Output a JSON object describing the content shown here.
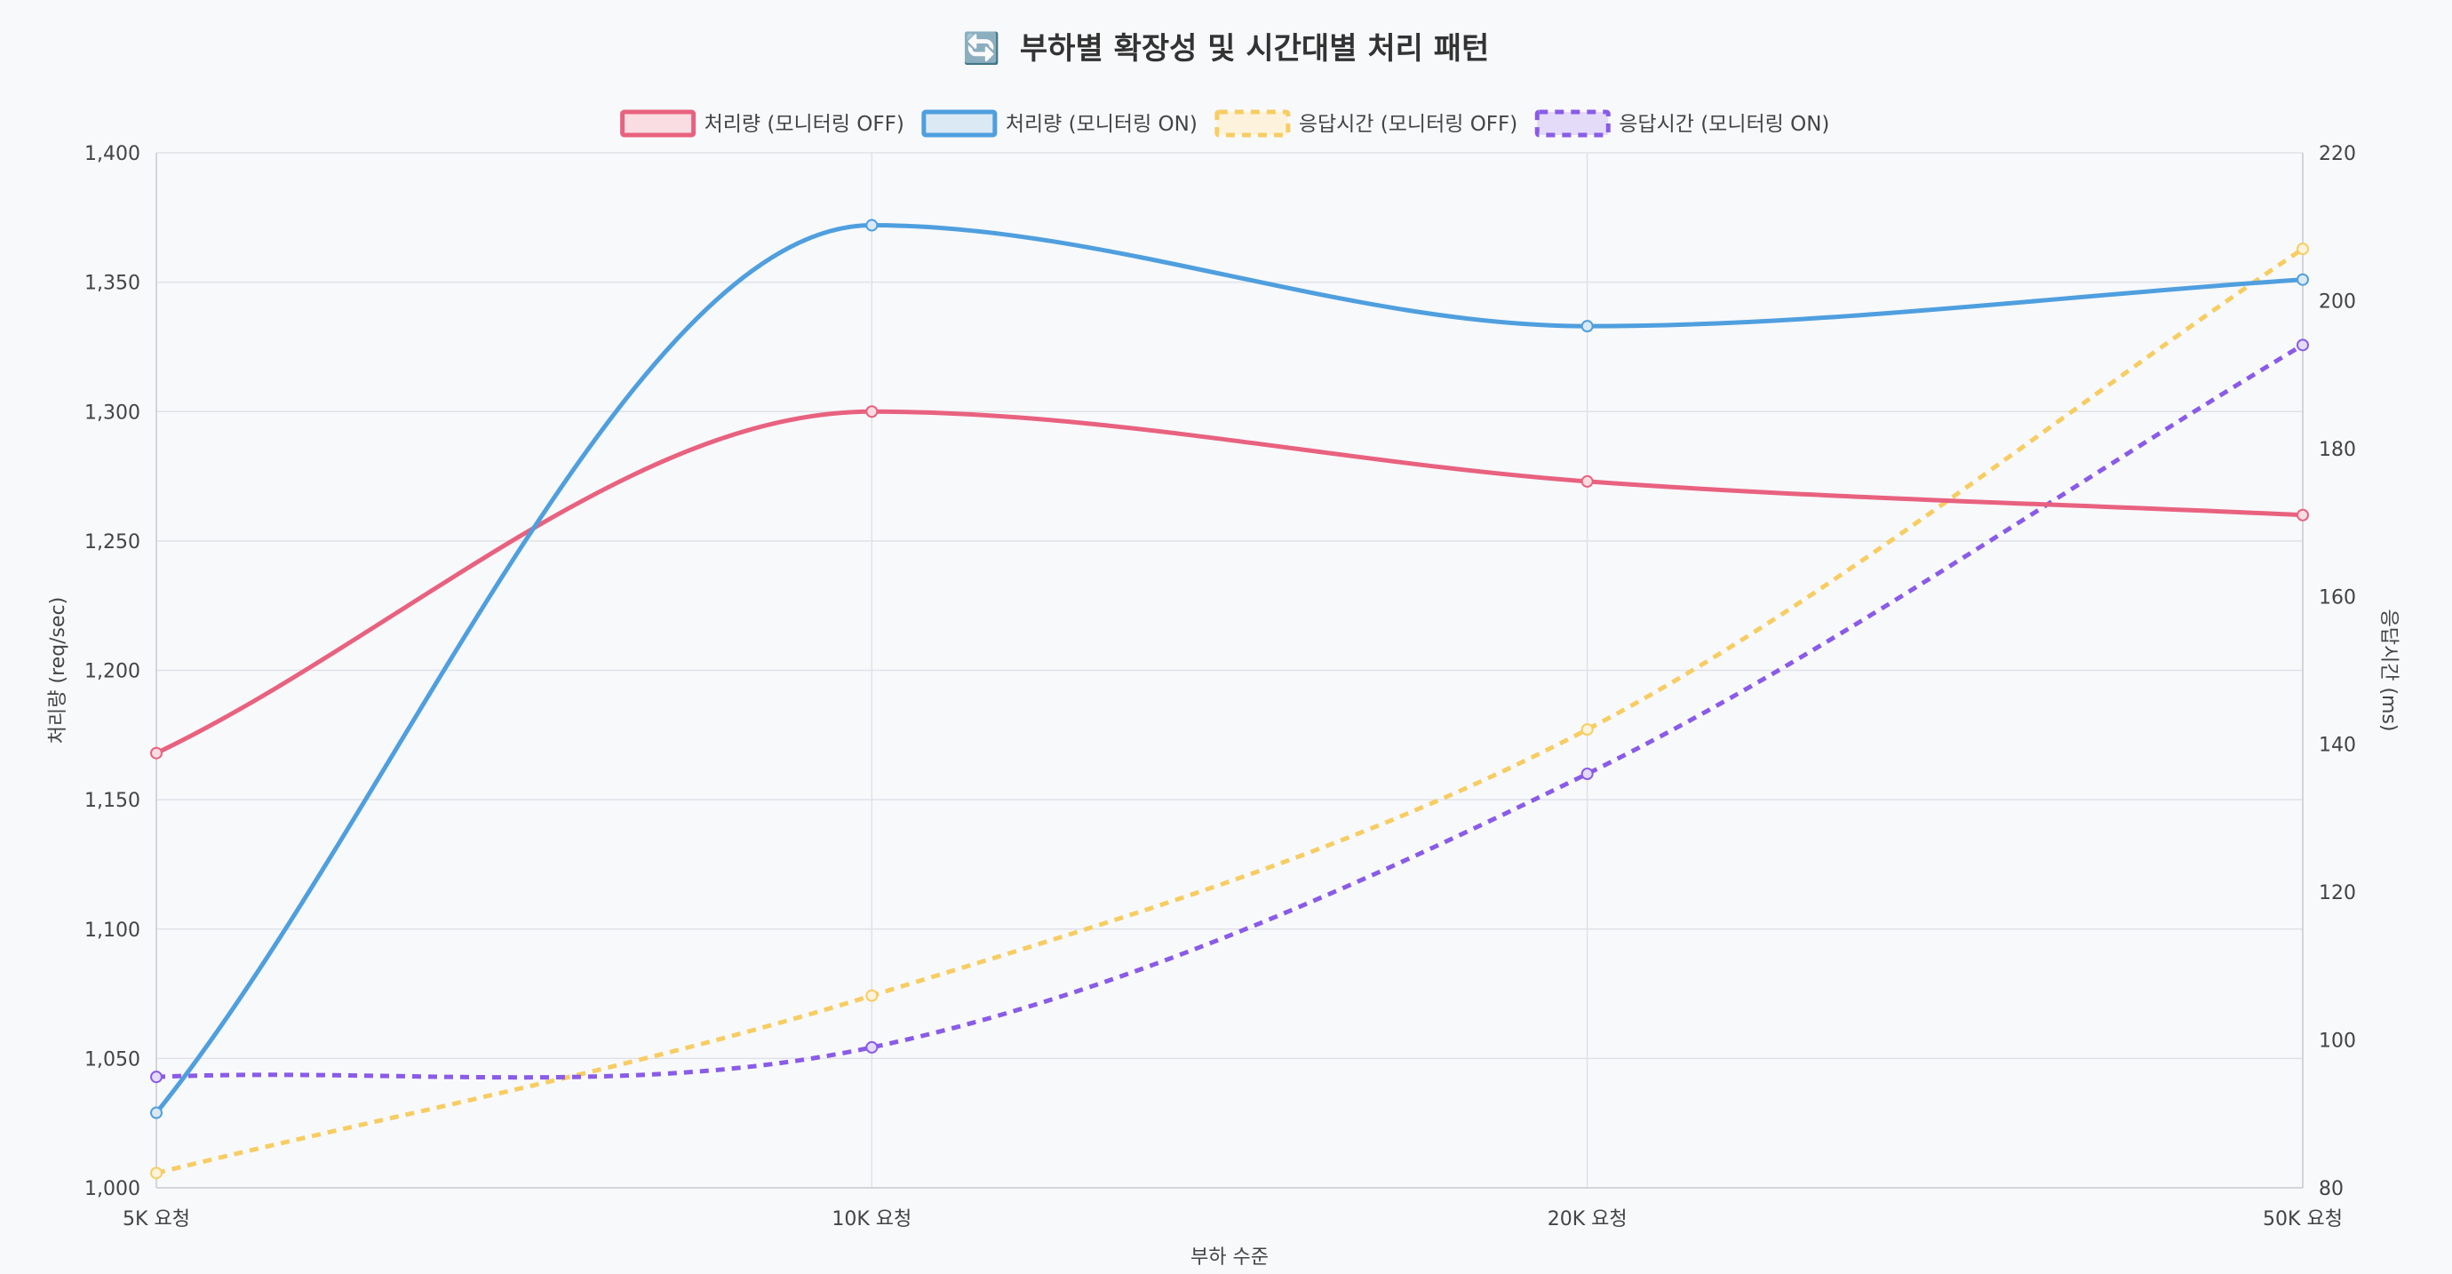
{
  "title_icon": "🔄",
  "title_text": "부하별 확장성 및 시간대별 처리 패턴",
  "chart_data": {
    "type": "line",
    "title": "🔄 부하별 확장성 및 시간대별 처리 패턴",
    "categories": [
      "5K 요청",
      "10K 요청",
      "20K 요청",
      "50K 요청"
    ],
    "xlabel": "부하 수준",
    "ylabel": "처리량 (req/sec)",
    "y2label": "응답시간 (ms)",
    "ylim": [
      1000,
      1400
    ],
    "y2lim": [
      80,
      220
    ],
    "yticks": [
      1000,
      1050,
      1100,
      1150,
      1200,
      1250,
      1300,
      1350,
      1400
    ],
    "y2ticks": [
      80,
      100,
      120,
      140,
      160,
      180,
      200,
      220
    ],
    "grid": true,
    "legend_position": "top",
    "series": [
      {
        "name": "처리량 (모니터링 OFF)",
        "axis": "left",
        "values": [
          1168,
          1300,
          1273,
          1260
        ],
        "color": "#e8627f",
        "fill": "#f9dde3",
        "dashed": false
      },
      {
        "name": "처리량 (모니터링 ON)",
        "axis": "left",
        "values": [
          1029,
          1372,
          1333,
          1351
        ],
        "color": "#4f9fdf",
        "fill": "#dbe9f5",
        "dashed": false
      },
      {
        "name": "응답시간 (모니터링 OFF)",
        "axis": "right",
        "values": [
          82,
          106,
          142,
          207
        ],
        "color": "#f7cd63",
        "fill": "#fdf3dc",
        "dashed": true
      },
      {
        "name": "응답시간 (모니터링 ON)",
        "axis": "right",
        "values": [
          95,
          99,
          136,
          194
        ],
        "color": "#8a5be8",
        "fill": "#e4dbf8",
        "dashed": true
      }
    ]
  }
}
